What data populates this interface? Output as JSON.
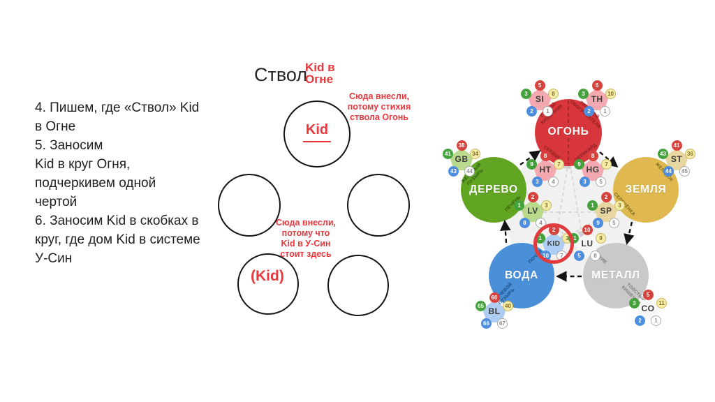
{
  "slide": {
    "instructions": "4. Пишем, где «Ствол» Kid\nв Огне\n5. Заносим\nKid в круг Огня,\nподчеркивем одной\nчертой\n6. Заносим Kid в скобках в\nкруг, где дом Kid в системе\nУ-Син",
    "title": "Ствол",
    "title_note": "Kid в\nОгне",
    "annotation_top": "Сюда внесли,\nпотому стихия\nствола Огонь",
    "annotation_bottom": "Сюда внесли,\nпотому что\nKid в У-Син\nстоит здесь",
    "scheme": {
      "top_circle_text": "Kid",
      "bottom_left_circle_text": "(Kid)"
    }
  },
  "colors": {
    "accent_red": "#e8383d",
    "fire": "#d7373c",
    "wood": "#61a523",
    "earth": "#dfb94f",
    "water": "#4a90d9",
    "metal": "#c9c9c9",
    "highlight_ring": "#e13b3e"
  },
  "wuxing": {
    "elements": {
      "fire": {
        "name": "ОГОНЬ",
        "organ_top_left": "ТОНКИЙ\nКИШЕЧНИК",
        "organ_top_right": "ТРОЙНОЙ\nОБОГРЕВАТЕЛЬ",
        "organ_bottom_left": "СЕРДЦЕ",
        "organ_bottom_right": "ПЕРИКАРД"
      },
      "wood": {
        "name": "ДЕРЕВО",
        "organ_top": "ЖЕЛЧНЫЙ\nПУЗЫРЬ",
        "organ_bottom": "ПЕЧЕНЬ"
      },
      "earth": {
        "name": "ЗЕМЛЯ",
        "organ_top": "ЖЕЛУДОК",
        "organ_bottom": "СЕЛЕЗЁНКА"
      },
      "water": {
        "name": "ВОДА",
        "organ_top": "ПОЧКИ",
        "organ_bottom": "МОЧЕВОЙ\nПУЗЫРЬ"
      },
      "metal": {
        "name": "МЕТАЛЛ",
        "organ_top": "ЛЁГКИЕ",
        "organ_bottom": "ТОЛСТЫЙ\nКИШЕЧНИК"
      }
    },
    "badges": {
      "SI": {
        "code": "SI",
        "style": "pink",
        "points": {
          "fire": "5",
          "wood": "3",
          "earth": "8",
          "water": "2",
          "metal": "1"
        }
      },
      "TH": {
        "code": "TH",
        "style": "pink",
        "points": {
          "fire": "6",
          "wood": "3",
          "earth": "10",
          "water": "2",
          "metal": "1"
        }
      },
      "HT": {
        "code": "HT",
        "style": "pink",
        "points": {
          "fire": "8",
          "wood": "9",
          "earth": "7",
          "water": "3",
          "metal": "4"
        }
      },
      "HG": {
        "code": "HG",
        "style": "pink",
        "points": {
          "fire": "8",
          "wood": "9",
          "earth": "7",
          "water": "3",
          "metal": "5"
        }
      },
      "GB": {
        "code": "GB",
        "style": "green",
        "points": {
          "fire": "38",
          "wood": "41",
          "earth": "34",
          "water": "43",
          "metal": "44"
        }
      },
      "LV": {
        "code": "LV",
        "style": "green",
        "points": {
          "fire": "2",
          "wood": "1",
          "earth": "3",
          "water": "8",
          "metal": "4"
        }
      },
      "ST": {
        "code": "ST",
        "style": "tan",
        "points": {
          "fire": "41",
          "wood": "43",
          "earth": "36",
          "water": "44",
          "metal": "45"
        }
      },
      "SP": {
        "code": "SP",
        "style": "tan",
        "points": {
          "fire": "2",
          "wood": "1",
          "earth": "3",
          "water": "9",
          "metal": "5"
        }
      },
      "KID": {
        "code": "KID",
        "style": "blue",
        "points": {
          "fire": "2",
          "wood": "1",
          "earth": "3",
          "water": "10",
          "metal": "7"
        }
      },
      "BL": {
        "code": "BL",
        "style": "blue",
        "points": {
          "fire": "60",
          "wood": "65",
          "earth": "40",
          "water": "66",
          "metal": "67"
        }
      },
      "LU": {
        "code": "LU",
        "style": "white",
        "points": {
          "fire": "10",
          "wood": "11",
          "earth": "9",
          "water": "5",
          "metal": "8"
        }
      },
      "CO": {
        "code": "CO",
        "style": "white",
        "points": {
          "fire": "5",
          "wood": "3",
          "earth": "11",
          "water": "2",
          "metal": "1"
        }
      }
    }
  }
}
